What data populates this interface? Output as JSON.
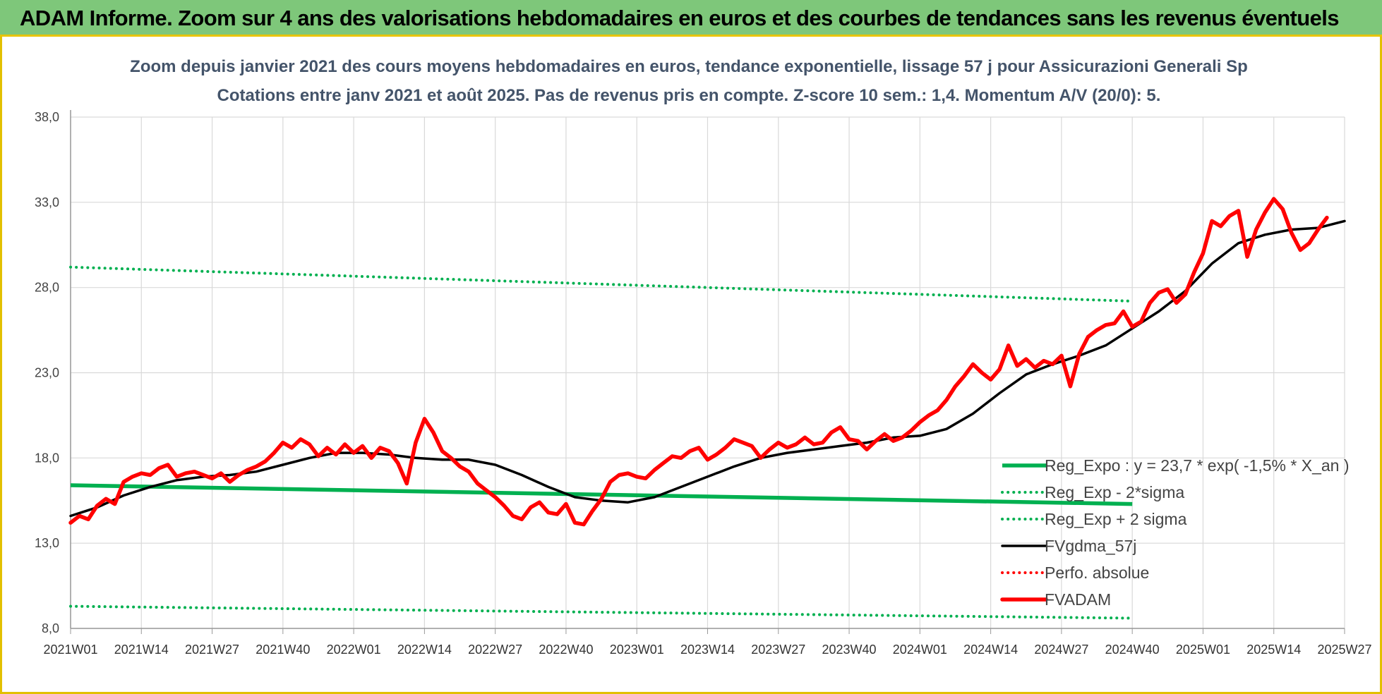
{
  "header": {
    "title": "ADAM Informe. Zoom sur 4 ans des valorisations hebdomadaires en euros et des courbes de tendances sans les revenus éventuels"
  },
  "chart_data": {
    "type": "line",
    "title": "Zoom depuis janvier 2021 des cours moyens hebdomadaires en euros, tendance exponentielle, lissage 57 j pour Assicurazioni Generali Sp",
    "subtitle": "Cotations entre janv 2021 et août 2025.  Pas de revenus pris en compte. Z-score 10 sem.: 1,4. Momentum A/V (20/0): 5.",
    "xlabel": "",
    "ylabel": "",
    "ylim": [
      8,
      38
    ],
    "yticks": [
      "8,0",
      "13,0",
      "18,0",
      "23,0",
      "28,0",
      "33,0",
      "38,0"
    ],
    "x_ticks": [
      "2021W01",
      "2021W14",
      "2021W27",
      "2021W40",
      "2022W01",
      "2022W14",
      "2022W27",
      "2022W40",
      "2023W01",
      "2023W14",
      "2023W27",
      "2023W40",
      "2024W01",
      "2024W14",
      "2024W27",
      "2024W40",
      "2025W01",
      "2025W14",
      "2025W27"
    ],
    "x_index_range": [
      0,
      240
    ],
    "grid": true,
    "legend_position": "right-bottom",
    "series": [
      {
        "name": "Reg_Expo : y = 23,7 * exp( -1,5% *  X_an )",
        "color": "#00b050",
        "style": "solid",
        "points": [
          [
            0,
            16.4
          ],
          [
            240,
            15.3
          ]
        ]
      },
      {
        "name": "Reg_Exp - 2*sigma",
        "color": "#00b050",
        "style": "dotted",
        "points": [
          [
            0,
            9.3
          ],
          [
            240,
            8.6
          ]
        ]
      },
      {
        "name": "Reg_Exp + 2 sigma",
        "color": "#00b050",
        "style": "dotted",
        "points": [
          [
            0,
            29.2
          ],
          [
            240,
            27.2
          ]
        ]
      },
      {
        "name": "FVgdma_57j",
        "color": "#000000",
        "style": "solid",
        "points": [
          [
            0,
            14.6
          ],
          [
            6,
            15.1
          ],
          [
            12,
            15.8
          ],
          [
            18,
            16.3
          ],
          [
            24,
            16.7
          ],
          [
            30,
            16.9
          ],
          [
            36,
            17.0
          ],
          [
            42,
            17.2
          ],
          [
            48,
            17.6
          ],
          [
            54,
            18.0
          ],
          [
            60,
            18.3
          ],
          [
            66,
            18.3
          ],
          [
            72,
            18.2
          ],
          [
            78,
            18.0
          ],
          [
            84,
            17.9
          ],
          [
            90,
            17.9
          ],
          [
            96,
            17.6
          ],
          [
            102,
            17.0
          ],
          [
            108,
            16.3
          ],
          [
            114,
            15.7
          ],
          [
            120,
            15.5
          ],
          [
            126,
            15.4
          ],
          [
            132,
            15.7
          ],
          [
            138,
            16.3
          ],
          [
            144,
            16.9
          ],
          [
            150,
            17.5
          ],
          [
            156,
            18.0
          ],
          [
            162,
            18.3
          ],
          [
            168,
            18.5
          ],
          [
            174,
            18.7
          ],
          [
            180,
            18.9
          ],
          [
            186,
            19.2
          ],
          [
            192,
            19.3
          ],
          [
            198,
            19.7
          ],
          [
            204,
            20.6
          ],
          [
            210,
            21.8
          ],
          [
            216,
            22.9
          ],
          [
            222,
            23.5
          ],
          [
            228,
            24.0
          ],
          [
            234,
            24.6
          ],
          [
            240,
            25.6
          ],
          [
            246,
            26.6
          ],
          [
            252,
            27.8
          ],
          [
            258,
            29.4
          ],
          [
            264,
            30.6
          ],
          [
            270,
            31.1
          ],
          [
            276,
            31.4
          ],
          [
            282,
            31.5
          ],
          [
            288,
            31.9
          ]
        ]
      },
      {
        "name": "Perfo. absolue",
        "color": "#ff0000",
        "style": "dotted",
        "points": []
      },
      {
        "name": "FVADAM",
        "color": "#ff0000",
        "style": "solid",
        "points": [
          [
            0,
            14.2
          ],
          [
            2,
            14.6
          ],
          [
            4,
            14.4
          ],
          [
            6,
            15.2
          ],
          [
            8,
            15.6
          ],
          [
            10,
            15.3
          ],
          [
            12,
            16.6
          ],
          [
            14,
            16.9
          ],
          [
            16,
            17.1
          ],
          [
            18,
            17.0
          ],
          [
            20,
            17.4
          ],
          [
            22,
            17.6
          ],
          [
            24,
            16.9
          ],
          [
            26,
            17.1
          ],
          [
            28,
            17.2
          ],
          [
            30,
            17.0
          ],
          [
            32,
            16.8
          ],
          [
            34,
            17.1
          ],
          [
            36,
            16.6
          ],
          [
            38,
            17.0
          ],
          [
            40,
            17.3
          ],
          [
            42,
            17.5
          ],
          [
            44,
            17.8
          ],
          [
            46,
            18.3
          ],
          [
            48,
            18.9
          ],
          [
            50,
            18.6
          ],
          [
            52,
            19.1
          ],
          [
            54,
            18.8
          ],
          [
            56,
            18.1
          ],
          [
            58,
            18.6
          ],
          [
            60,
            18.2
          ],
          [
            62,
            18.8
          ],
          [
            64,
            18.3
          ],
          [
            66,
            18.7
          ],
          [
            68,
            18.0
          ],
          [
            70,
            18.6
          ],
          [
            72,
            18.4
          ],
          [
            74,
            17.7
          ],
          [
            76,
            16.5
          ],
          [
            78,
            18.9
          ],
          [
            80,
            20.3
          ],
          [
            82,
            19.5
          ],
          [
            84,
            18.4
          ],
          [
            86,
            18.0
          ],
          [
            88,
            17.5
          ],
          [
            90,
            17.2
          ],
          [
            92,
            16.5
          ],
          [
            94,
            16.1
          ],
          [
            96,
            15.7
          ],
          [
            98,
            15.2
          ],
          [
            100,
            14.6
          ],
          [
            102,
            14.4
          ],
          [
            104,
            15.1
          ],
          [
            106,
            15.4
          ],
          [
            108,
            14.8
          ],
          [
            110,
            14.7
          ],
          [
            112,
            15.3
          ],
          [
            114,
            14.2
          ],
          [
            116,
            14.1
          ],
          [
            118,
            14.9
          ],
          [
            120,
            15.6
          ],
          [
            122,
            16.6
          ],
          [
            124,
            17.0
          ],
          [
            126,
            17.1
          ],
          [
            128,
            16.9
          ],
          [
            130,
            16.8
          ],
          [
            132,
            17.3
          ],
          [
            134,
            17.7
          ],
          [
            136,
            18.1
          ],
          [
            138,
            18.0
          ],
          [
            140,
            18.4
          ],
          [
            142,
            18.6
          ],
          [
            144,
            17.9
          ],
          [
            146,
            18.2
          ],
          [
            148,
            18.6
          ],
          [
            150,
            19.1
          ],
          [
            152,
            18.9
          ],
          [
            154,
            18.7
          ],
          [
            156,
            18.0
          ],
          [
            158,
            18.5
          ],
          [
            160,
            18.9
          ],
          [
            162,
            18.6
          ],
          [
            164,
            18.8
          ],
          [
            166,
            19.2
          ],
          [
            168,
            18.8
          ],
          [
            170,
            18.9
          ],
          [
            172,
            19.5
          ],
          [
            174,
            19.8
          ],
          [
            176,
            19.1
          ],
          [
            178,
            19.0
          ],
          [
            180,
            18.5
          ],
          [
            182,
            19.0
          ],
          [
            184,
            19.4
          ],
          [
            186,
            19.0
          ],
          [
            188,
            19.2
          ],
          [
            190,
            19.6
          ],
          [
            192,
            20.1
          ],
          [
            194,
            20.5
          ],
          [
            196,
            20.8
          ],
          [
            198,
            21.4
          ],
          [
            200,
            22.2
          ],
          [
            202,
            22.8
          ],
          [
            204,
            23.5
          ],
          [
            206,
            23.0
          ],
          [
            208,
            22.6
          ],
          [
            210,
            23.2
          ],
          [
            212,
            24.6
          ],
          [
            214,
            23.4
          ],
          [
            216,
            23.8
          ],
          [
            218,
            23.3
          ],
          [
            220,
            23.7
          ],
          [
            222,
            23.5
          ],
          [
            224,
            24.0
          ],
          [
            226,
            22.2
          ],
          [
            228,
            24.1
          ],
          [
            230,
            25.1
          ],
          [
            232,
            25.5
          ],
          [
            234,
            25.8
          ],
          [
            236,
            25.9
          ],
          [
            238,
            26.6
          ],
          [
            240,
            25.7
          ],
          [
            242,
            26.0
          ],
          [
            244,
            27.1
          ],
          [
            246,
            27.7
          ],
          [
            248,
            27.9
          ],
          [
            250,
            27.1
          ],
          [
            252,
            27.6
          ],
          [
            254,
            28.9
          ],
          [
            256,
            30.0
          ],
          [
            258,
            31.9
          ],
          [
            260,
            31.6
          ],
          [
            262,
            32.2
          ],
          [
            264,
            32.5
          ],
          [
            266,
            29.8
          ],
          [
            268,
            31.4
          ],
          [
            270,
            32.4
          ],
          [
            272,
            33.2
          ],
          [
            274,
            32.6
          ],
          [
            276,
            31.2
          ],
          [
            278,
            30.2
          ],
          [
            280,
            30.6
          ],
          [
            282,
            31.4
          ],
          [
            284,
            32.1
          ]
        ]
      }
    ]
  }
}
